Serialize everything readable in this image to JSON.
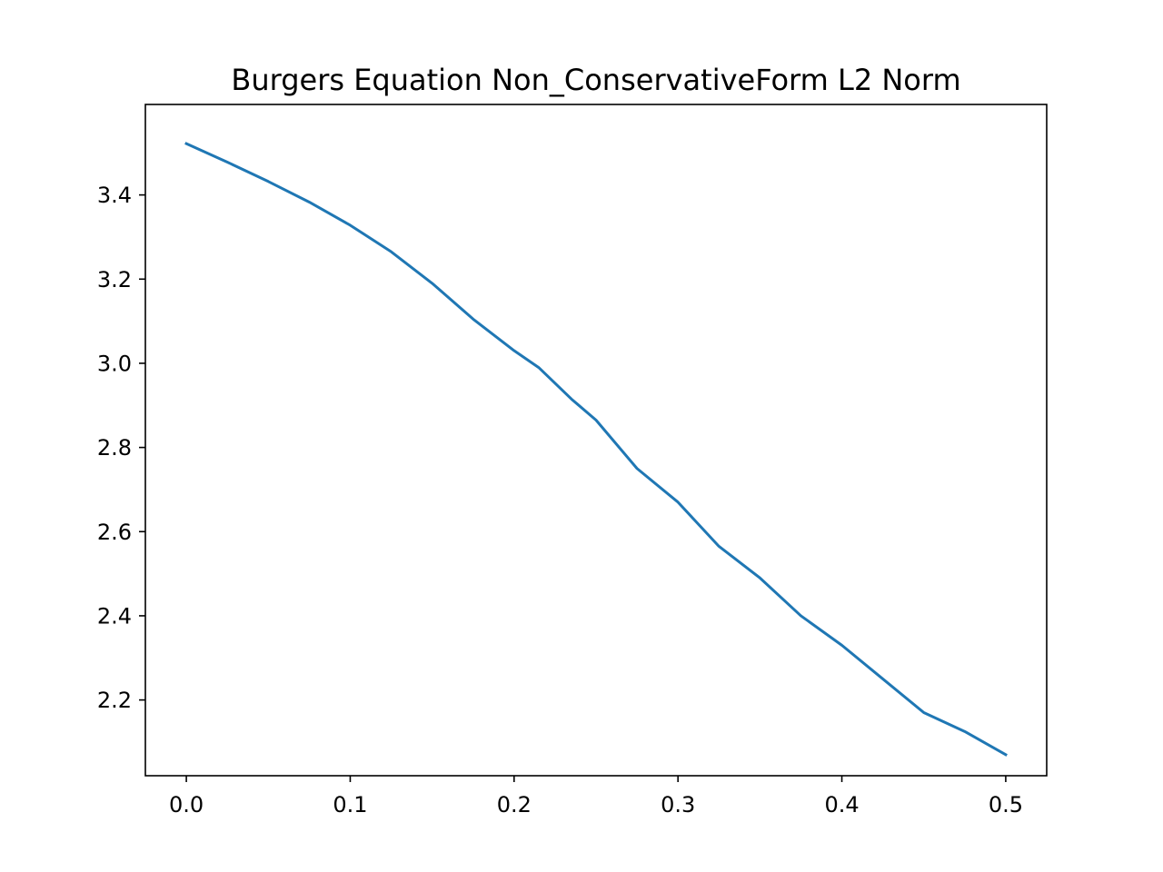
{
  "chart_data": {
    "type": "line",
    "title": "Burgers Equation Non_ConservativeForm L2 Norm",
    "xlabel": "",
    "ylabel": "",
    "xlim": [
      -0.025,
      0.525
    ],
    "ylim": [
      2.02,
      3.615
    ],
    "x_ticks": [
      0.0,
      0.1,
      0.2,
      0.3,
      0.4,
      0.5
    ],
    "x_tick_labels": [
      "0.0",
      "0.1",
      "0.2",
      "0.3",
      "0.4",
      "0.5"
    ],
    "y_ticks": [
      2.2,
      2.4,
      2.6,
      2.8,
      3.0,
      3.2,
      3.4
    ],
    "y_tick_labels": [
      "2.2",
      "2.4",
      "2.6",
      "2.8",
      "3.0",
      "3.2",
      "3.4"
    ],
    "grid": false,
    "series": [
      {
        "color": "#1f77b4",
        "x": [
          0.0,
          0.025,
          0.05,
          0.075,
          0.1,
          0.125,
          0.15,
          0.175,
          0.2,
          0.215,
          0.235,
          0.25,
          0.275,
          0.3,
          0.325,
          0.35,
          0.375,
          0.4,
          0.425,
          0.45,
          0.475,
          0.5
        ],
        "y": [
          3.522,
          3.478,
          3.432,
          3.383,
          3.328,
          3.265,
          3.19,
          3.105,
          3.03,
          2.99,
          2.915,
          2.865,
          2.75,
          2.67,
          2.565,
          2.49,
          2.4,
          2.33,
          2.25,
          2.17,
          2.125,
          2.07
        ]
      }
    ]
  }
}
